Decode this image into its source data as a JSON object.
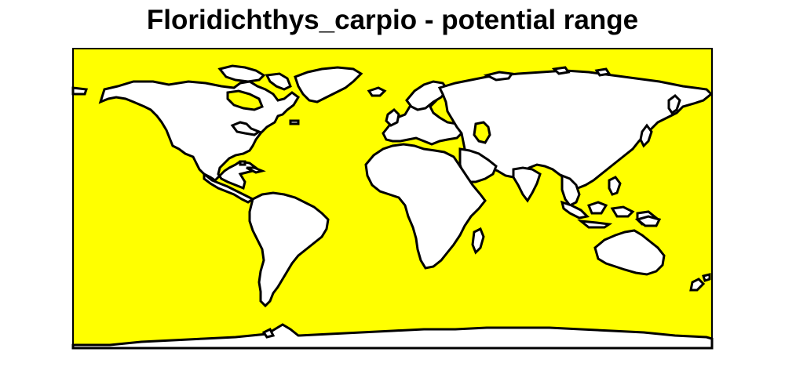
{
  "title": "Floridichthys_carpio - potential range",
  "colors": {
    "ocean_potential_range": "#ffff00",
    "land": "#ffffff",
    "outline": "#000000"
  }
}
